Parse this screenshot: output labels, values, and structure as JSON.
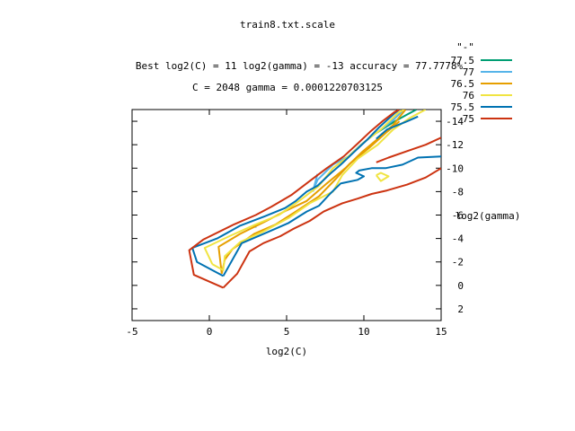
{
  "chart_data": {
    "type": "contour",
    "title": "train8.txt.scale",
    "subtitle_1": "Best log2(C) = 11  log2(gamma) = -13  accuracy = 77.7778%",
    "subtitle_2": "C = 2048  gamma = 0.0001220703125",
    "xlabel": "log2(C)",
    "ylabel": "log2(gamma)",
    "xlim": [
      -5,
      15
    ],
    "ylim": [
      3,
      -15
    ],
    "x_ticks": [
      -5,
      0,
      5,
      10,
      15
    ],
    "x_tick_labels": [
      "-5",
      "0",
      "5",
      "10",
      "15"
    ],
    "y_ticks": [
      -14,
      -12,
      -10,
      -8,
      -6,
      -4,
      -2,
      0,
      2
    ],
    "y_tick_labels": [
      "-14",
      "-12",
      "-10",
      "-8",
      "-6",
      "-4",
      "-2",
      "0",
      "2"
    ],
    "legend_title": "\"-\"",
    "legend_position": "top-right",
    "series": [
      {
        "name": "77.5",
        "color": "#009e73",
        "paths": [
          [
            [
              10.8,
              -13.0
            ],
            [
              11.4,
              -13.5
            ],
            [
              12.0,
              -14.0
            ],
            [
              12.7,
              -14.5
            ],
            [
              13.4,
              -15.0
            ]
          ]
        ]
      },
      {
        "name": "77",
        "color": "#56b4e9",
        "paths": [
          [
            [
              6.7,
              -8.0
            ],
            [
              7.0,
              -9.0
            ],
            [
              8.0,
              -10.3
            ],
            [
              9.0,
              -11.0
            ],
            [
              9.8,
              -12.0
            ],
            [
              10.8,
              -13.0
            ],
            [
              11.8,
              -14.0
            ],
            [
              12.6,
              -15.0
            ]
          ],
          [
            [
              7.0,
              -9.5
            ],
            [
              6.7,
              -8.0
            ]
          ],
          [
            [
              2.85,
              -5.0
            ],
            [
              3.05,
              -5.0
            ]
          ]
        ]
      },
      {
        "name": "76.5",
        "color": "#e69f00",
        "paths": [
          [
            [
              0.8,
              -1.0
            ],
            [
              0.6,
              -3.3
            ],
            [
              2.0,
              -4.4
            ],
            [
              3.7,
              -5.5
            ],
            [
              5.0,
              -6.4
            ],
            [
              6.3,
              -7.2
            ],
            [
              7.6,
              -8.7
            ],
            [
              8.8,
              -10.0
            ],
            [
              9.9,
              -11.4
            ],
            [
              10.9,
              -12.5
            ],
            [
              11.9,
              -13.7
            ],
            [
              12.7,
              -15.0
            ]
          ],
          [
            [
              0.8,
              -1.0
            ],
            [
              1.0,
              -2.2
            ],
            [
              1.5,
              -3.1
            ],
            [
              2.9,
              -4.4
            ],
            [
              4.3,
              -5.2
            ],
            [
              5.6,
              -6.3
            ],
            [
              7.1,
              -7.6
            ],
            [
              8.2,
              -9.1
            ],
            [
              9.1,
              -10.4
            ],
            [
              10.4,
              -11.8
            ],
            [
              11.5,
              -13.1
            ],
            [
              12.3,
              -14.0
            ]
          ]
        ]
      },
      {
        "name": "76",
        "color": "#f0e442",
        "paths": [
          [
            [
              0.2,
              -1.8
            ],
            [
              -0.3,
              -3.2
            ],
            [
              1.3,
              -4.2
            ],
            [
              3.0,
              -5.2
            ],
            [
              4.5,
              -6.0
            ],
            [
              5.8,
              -7.2
            ],
            [
              7.1,
              -8.5
            ],
            [
              8.0,
              -10.0
            ],
            [
              9.0,
              -11.0
            ],
            [
              10.0,
              -12.2
            ],
            [
              11.1,
              -13.3
            ],
            [
              12.2,
              -14.7
            ],
            [
              12.6,
              -15.0
            ]
          ],
          [
            [
              0.2,
              -1.8
            ],
            [
              0.9,
              -1.3
            ],
            [
              1.0,
              -2.5
            ],
            [
              2.0,
              -3.7
            ],
            [
              3.5,
              -4.6
            ],
            [
              5.2,
              -5.8
            ],
            [
              6.5,
              -7.0
            ],
            [
              8.0,
              -8.0
            ],
            [
              8.6,
              -9.4
            ],
            [
              9.6,
              -10.8
            ],
            [
              10.9,
              -12.0
            ],
            [
              11.9,
              -13.3
            ],
            [
              13.0,
              -14.3
            ],
            [
              14.0,
              -15.0
            ]
          ],
          [
            [
              10.8,
              -9.4
            ],
            [
              11.1,
              -8.9
            ],
            [
              11.6,
              -9.3
            ],
            [
              11.1,
              -9.6
            ],
            [
              10.8,
              -9.4
            ]
          ]
        ]
      },
      {
        "name": "75.5",
        "color": "#0072b2",
        "paths": [
          [
            [
              0.9,
              -0.8
            ],
            [
              -0.8,
              -2.0
            ],
            [
              -1.1,
              -3.2
            ],
            [
              0.5,
              -4.0
            ],
            [
              2.0,
              -5.1
            ],
            [
              3.6,
              -5.9
            ],
            [
              4.9,
              -6.6
            ],
            [
              5.6,
              -7.2
            ],
            [
              6.3,
              -8.0
            ],
            [
              7.0,
              -8.5
            ],
            [
              7.8,
              -9.5
            ],
            [
              8.5,
              -10.3
            ],
            [
              9.3,
              -11.3
            ],
            [
              10.2,
              -12.4
            ],
            [
              11.0,
              -13.5
            ],
            [
              12.0,
              -14.7
            ],
            [
              12.3,
              -15.0
            ]
          ],
          [
            [
              0.9,
              -0.8
            ],
            [
              2.1,
              -3.6
            ],
            [
              3.7,
              -4.5
            ],
            [
              5.1,
              -5.3
            ],
            [
              6.3,
              -6.3
            ],
            [
              7.1,
              -6.8
            ],
            [
              7.8,
              -7.8
            ],
            [
              8.5,
              -8.7
            ],
            [
              9.6,
              -9.0
            ],
            [
              10.0,
              -9.3
            ],
            [
              9.5,
              -9.6
            ],
            [
              9.7,
              -9.8
            ],
            [
              10.5,
              -10.0
            ],
            [
              11.4,
              -10.0
            ],
            [
              12.5,
              -10.3
            ],
            [
              13.5,
              -10.9
            ],
            [
              15.0,
              -11.0
            ]
          ],
          [
            [
              10.8,
              -12.5
            ],
            [
              11.5,
              -13.3
            ],
            [
              12.8,
              -14.0
            ],
            [
              13.5,
              -14.4
            ]
          ]
        ]
      },
      {
        "name": "75",
        "color": "#cc3311",
        "paths": [
          [
            [
              0.9,
              0.2
            ],
            [
              -1.0,
              -0.9
            ],
            [
              -1.3,
              -3.0
            ],
            [
              -0.4,
              -3.9
            ],
            [
              1.6,
              -5.2
            ],
            [
              3.0,
              -6.0
            ],
            [
              4.0,
              -6.7
            ],
            [
              5.3,
              -7.7
            ],
            [
              6.5,
              -8.9
            ],
            [
              7.6,
              -10.0
            ],
            [
              8.7,
              -11.0
            ],
            [
              9.6,
              -12.1
            ],
            [
              10.4,
              -13.1
            ],
            [
              11.2,
              -14.0
            ],
            [
              12.0,
              -14.8
            ],
            [
              12.3,
              -15.0
            ]
          ],
          [
            [
              0.9,
              0.2
            ],
            [
              1.8,
              -1.0
            ],
            [
              2.6,
              -2.9
            ],
            [
              3.5,
              -3.6
            ],
            [
              4.6,
              -4.2
            ],
            [
              5.4,
              -4.8
            ],
            [
              6.5,
              -5.5
            ],
            [
              7.4,
              -6.3
            ],
            [
              8.6,
              -7.0
            ],
            [
              9.6,
              -7.4
            ],
            [
              10.5,
              -7.8
            ],
            [
              11.5,
              -8.1
            ],
            [
              12.8,
              -8.6
            ],
            [
              14.0,
              -9.2
            ],
            [
              15.0,
              -10.0
            ]
          ],
          [
            [
              10.8,
              -10.5
            ],
            [
              11.6,
              -10.9
            ],
            [
              12.9,
              -11.5
            ],
            [
              14.0,
              -12.0
            ],
            [
              15.0,
              -12.6
            ]
          ]
        ]
      }
    ]
  }
}
